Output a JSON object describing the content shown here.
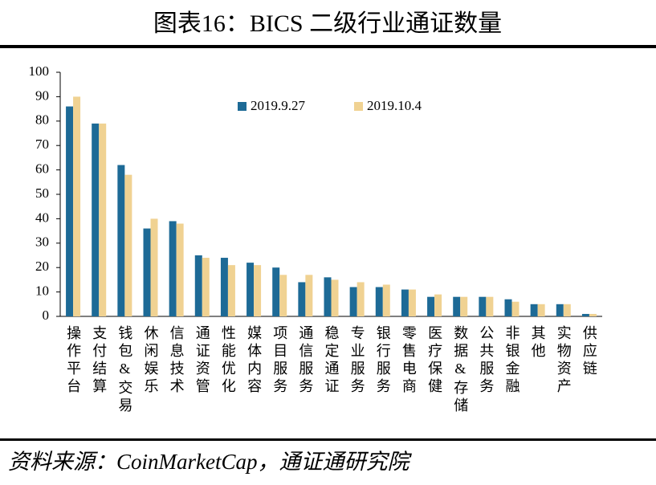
{
  "chart_data": {
    "type": "bar",
    "title": "图表16：BICS 二级行业通证数量",
    "source": "资料来源：CoinMarketCap，通证通研究院",
    "categories": [
      "操作平台",
      "支付结算",
      "钱包&交易",
      "休闲娱乐",
      "信息技术",
      "通证资管",
      "性能优化",
      "媒体内容",
      "项目服务",
      "通信服务",
      "稳定通证",
      "专业服务",
      "银行服务",
      "零售电商",
      "医疗保健",
      "数据&存储",
      "公共服务",
      "非银金融",
      "其他",
      "实物资产",
      "供应链"
    ],
    "series": [
      {
        "name": "2019.9.27",
        "color": "#1d6a96",
        "values": [
          86,
          79,
          62,
          36,
          39,
          25,
          24,
          22,
          20,
          14,
          16,
          12,
          12,
          11,
          8,
          8,
          8,
          7,
          5,
          5,
          1
        ]
      },
      {
        "name": "2019.10.4",
        "color": "#f0d292",
        "values": [
          90,
          79,
          58,
          40,
          38,
          24,
          21,
          21,
          17,
          17,
          15,
          14,
          13,
          11,
          9,
          8,
          8,
          6,
          5,
          5,
          1
        ]
      }
    ],
    "ylim": [
      0,
      100
    ],
    "yticks": [
      0,
      10,
      20,
      30,
      40,
      50,
      60,
      70,
      80,
      90,
      100
    ],
    "grid": false
  }
}
